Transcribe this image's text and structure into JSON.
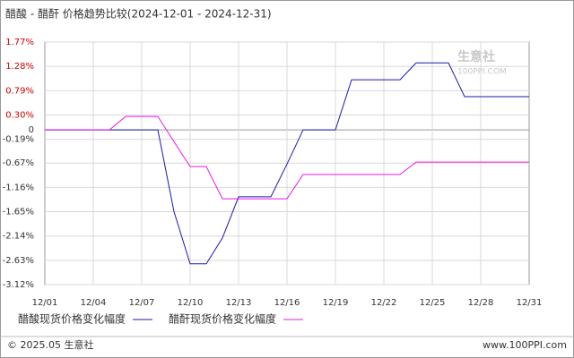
{
  "chart_data": {
    "type": "line",
    "title": "醋酸 - 醋酐 价格趋势比较(2024-12-01 - 2024-12-31)",
    "categories": [
      "12/01",
      null,
      null,
      "12/04",
      null,
      null,
      "12/07",
      null,
      null,
      "12/10",
      null,
      null,
      "12/13",
      null,
      null,
      "12/16",
      null,
      null,
      "12/19",
      null,
      null,
      "12/22",
      null,
      null,
      "12/25",
      null,
      null,
      "12/28",
      null,
      null,
      "12/31"
    ],
    "series": [
      {
        "name": "醋酸现货价格变化幅度",
        "color": "#1a1aa6",
        "values": [
          0,
          0,
          0,
          0,
          0,
          0,
          0,
          0,
          -1.65,
          -2.7,
          -2.7,
          -2.18,
          -1.35,
          -1.35,
          -1.35,
          -0.69,
          0,
          0,
          0,
          1.01,
          1.01,
          1.01,
          1.01,
          1.35,
          1.35,
          1.35,
          0.67,
          0.67,
          0.67,
          0.67,
          0.67
        ]
      },
      {
        "name": "醋酐现货价格变化幅度",
        "color": "#e619e6",
        "values": [
          0,
          0,
          0,
          0,
          0,
          0.27,
          0.27,
          0.27,
          -0.24,
          -0.74,
          -0.74,
          -1.39,
          -1.39,
          -1.39,
          -1.39,
          -1.39,
          -0.9,
          -0.9,
          -0.9,
          -0.9,
          -0.9,
          -0.9,
          -0.9,
          -0.65,
          -0.65,
          -0.65,
          -0.65,
          -0.65,
          -0.65,
          -0.65,
          -0.65
        ]
      }
    ],
    "ylim": [
      -3.12,
      1.77
    ],
    "yticks": [
      {
        "value": 1.77,
        "label": "1.77%"
      },
      {
        "value": 1.28,
        "label": "1.28%"
      },
      {
        "value": 0.79,
        "label": "0.79%"
      },
      {
        "value": 0.3,
        "label": "0.30%"
      },
      0,
      {
        "value": -0.19,
        "label": "-0.19%"
      },
      {
        "value": -0.67,
        "label": "-0.67%"
      },
      {
        "value": -1.16,
        "label": "-1.16%"
      },
      {
        "value": -1.65,
        "label": "-1.65%"
      },
      {
        "value": -2.14,
        "label": "-2.14%"
      },
      {
        "value": -2.63,
        "label": "-2.63%"
      },
      {
        "value": -3.12,
        "label": "-3.12%"
      }
    ],
    "grid": true,
    "watermark": {
      "name": "生意社",
      "site": "100PPI.COM"
    },
    "footer": {
      "left": "© 2025.05 生意社",
      "right": "www.100PPI.com"
    }
  }
}
